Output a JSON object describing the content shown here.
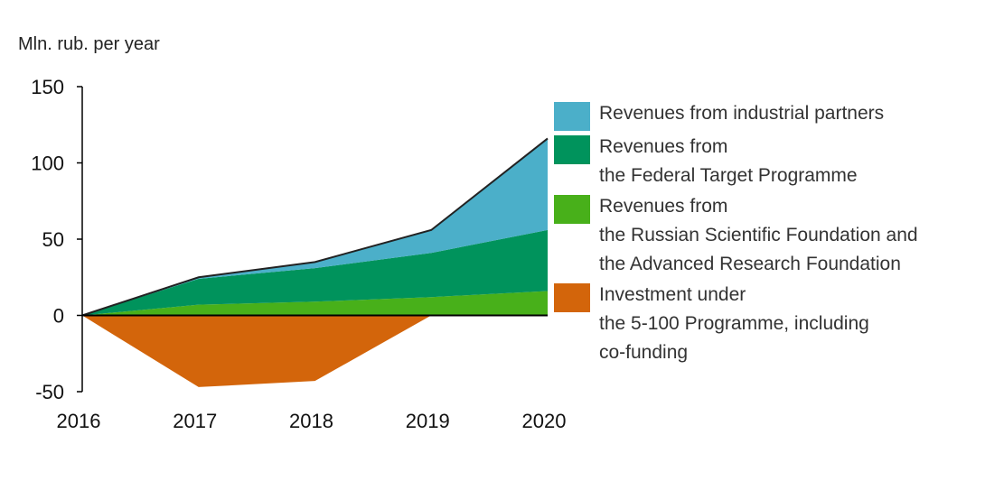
{
  "chart_data": {
    "type": "area",
    "title": "",
    "ylabel": "Mln. rub. per year",
    "xlabel": "",
    "x": [
      "2016",
      "2017",
      "2018",
      "2019",
      "2020"
    ],
    "ylim": [
      -50,
      150
    ],
    "yticks": [
      "150",
      "100",
      "50",
      "0",
      "-50"
    ],
    "stacked": true,
    "grid": false,
    "legend_position": "right",
    "series": [
      {
        "name": "Revenues from industrial partners",
        "color": "#4bafc9",
        "values": [
          0,
          1,
          4,
          15,
          60
        ]
      },
      {
        "name": "Revenues from\nthe Federal Target Programme",
        "color": "#00935c",
        "values": [
          0,
          17,
          22,
          29,
          40
        ]
      },
      {
        "name": "Revenues from\nthe Russian Scientific Foundation and\nthe Advanced Research Foundation",
        "color": "#48b01a",
        "values": [
          0,
          7,
          9,
          12,
          16
        ]
      },
      {
        "name": "Investment under\nthe 5-100 Programme, including\nco-funding",
        "color": "#d3650b",
        "values": [
          0,
          -47,
          -43,
          0,
          0
        ]
      }
    ]
  }
}
